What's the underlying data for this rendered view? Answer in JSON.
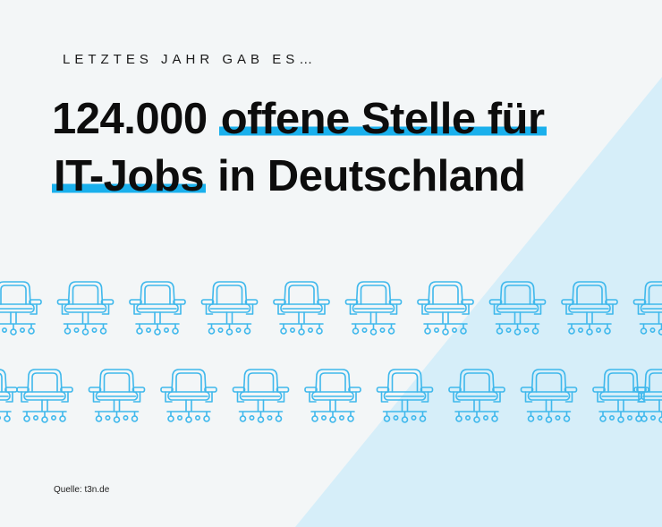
{
  "kicker": "LETZTES JAHR GAB ES…",
  "headline": {
    "line1_plain": "124.000 ",
    "line1_highlight": "offene Stelle für",
    "line2_highlight": "IT-Jobs",
    "line2_plain": " in Deutschland"
  },
  "source": "Quelle: t3n.de",
  "colors": {
    "background": "#f3f6f7",
    "accent_triangle": "#d6eef9",
    "highlight": "#1ab0ec",
    "chair_stroke": "#3fb8ec"
  },
  "chair_icon": "office-chair-icon",
  "chair_rows": [
    {
      "count": 10
    },
    {
      "count": 10
    }
  ]
}
